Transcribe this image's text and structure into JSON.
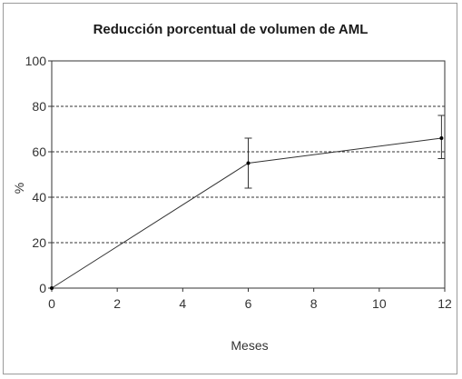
{
  "chart_data": {
    "type": "line",
    "title": "Reducción porcentual de volumen de AML",
    "xlabel": "Meses",
    "ylabel": "%",
    "xlim": [
      0,
      12
    ],
    "ylim": [
      0,
      100
    ],
    "x_ticks": [
      "0",
      "2",
      "4",
      "6",
      "8",
      "10",
      "12"
    ],
    "y_ticks": [
      "0",
      "20",
      "40",
      "60",
      "80",
      "100"
    ],
    "grid": "horizontal dashed",
    "series": [
      {
        "points": [
          {
            "x": 0,
            "y": 0
          },
          {
            "x": 6,
            "y": 55,
            "err_low": 44,
            "err_high": 66
          },
          {
            "x": 11.9,
            "y": 66,
            "err_low": 57,
            "err_high": 76
          }
        ]
      }
    ],
    "colors": {
      "line": "#333333",
      "grid": "#333333",
      "frame": "#9a9a9a"
    }
  }
}
